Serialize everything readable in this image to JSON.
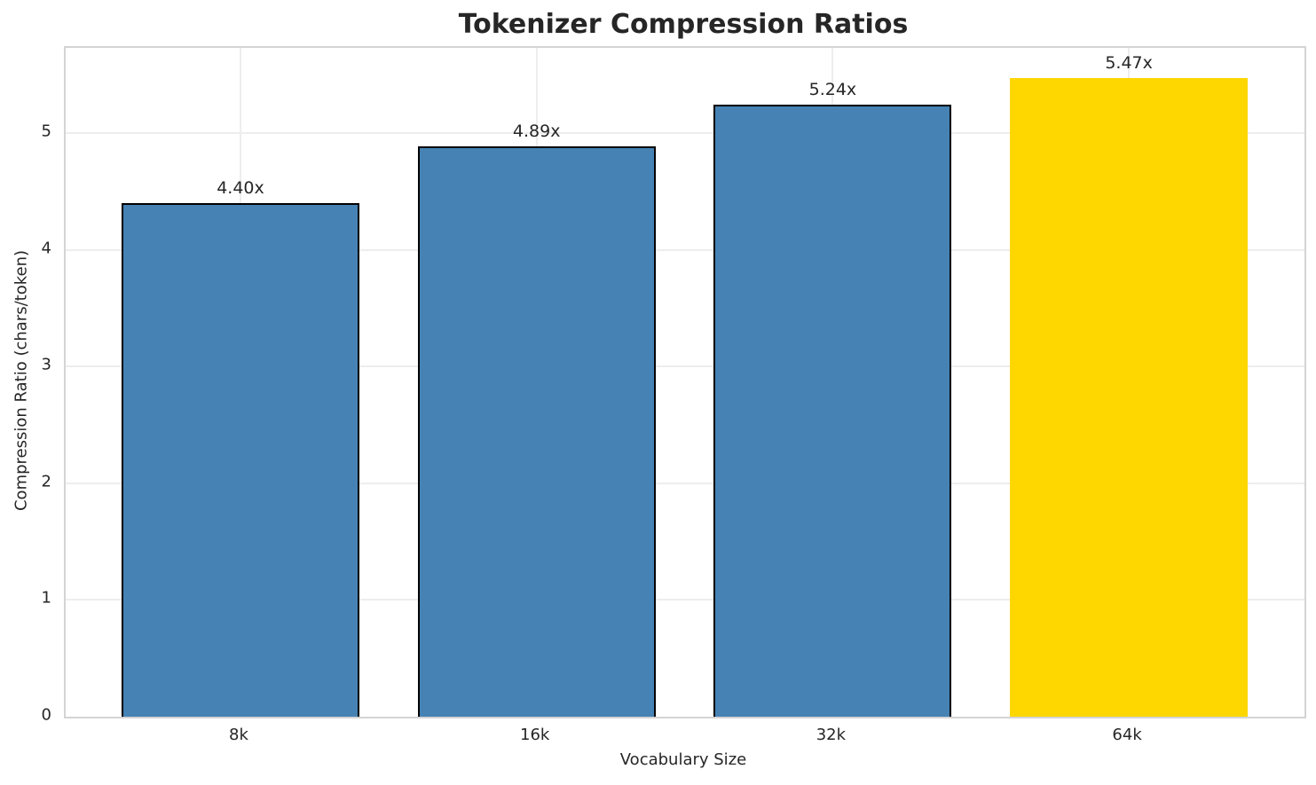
{
  "title": "Tokenizer Compression Ratios",
  "chart_data": {
    "type": "bar",
    "title": "Tokenizer Compression Ratios",
    "xlabel": "Vocabulary Size",
    "ylabel": "Compression Ratio (chars/token)",
    "categories": [
      "8k",
      "16k",
      "32k",
      "64k"
    ],
    "values": [
      4.4,
      4.89,
      5.24,
      5.47
    ],
    "bar_labels": [
      "4.40x",
      "4.89x",
      "5.24x",
      "5.47x"
    ],
    "yticks": [
      0,
      1,
      2,
      3,
      4,
      5
    ],
    "ylim": [
      0,
      5.73
    ],
    "grid": true,
    "legend": "none",
    "bar_colors": [
      "#4682B4",
      "#4682B4",
      "#4682B4",
      "#FFD700"
    ],
    "bar_edge_colors": [
      "#000000",
      "#000000",
      "#000000",
      "none"
    ],
    "highlight_index": 3
  },
  "colors": {
    "bar_blue": "#4682B4",
    "bar_gold": "#FFD700",
    "gridline": "#EDEDED",
    "spine": "#D4D4D4",
    "text": "#262626"
  }
}
